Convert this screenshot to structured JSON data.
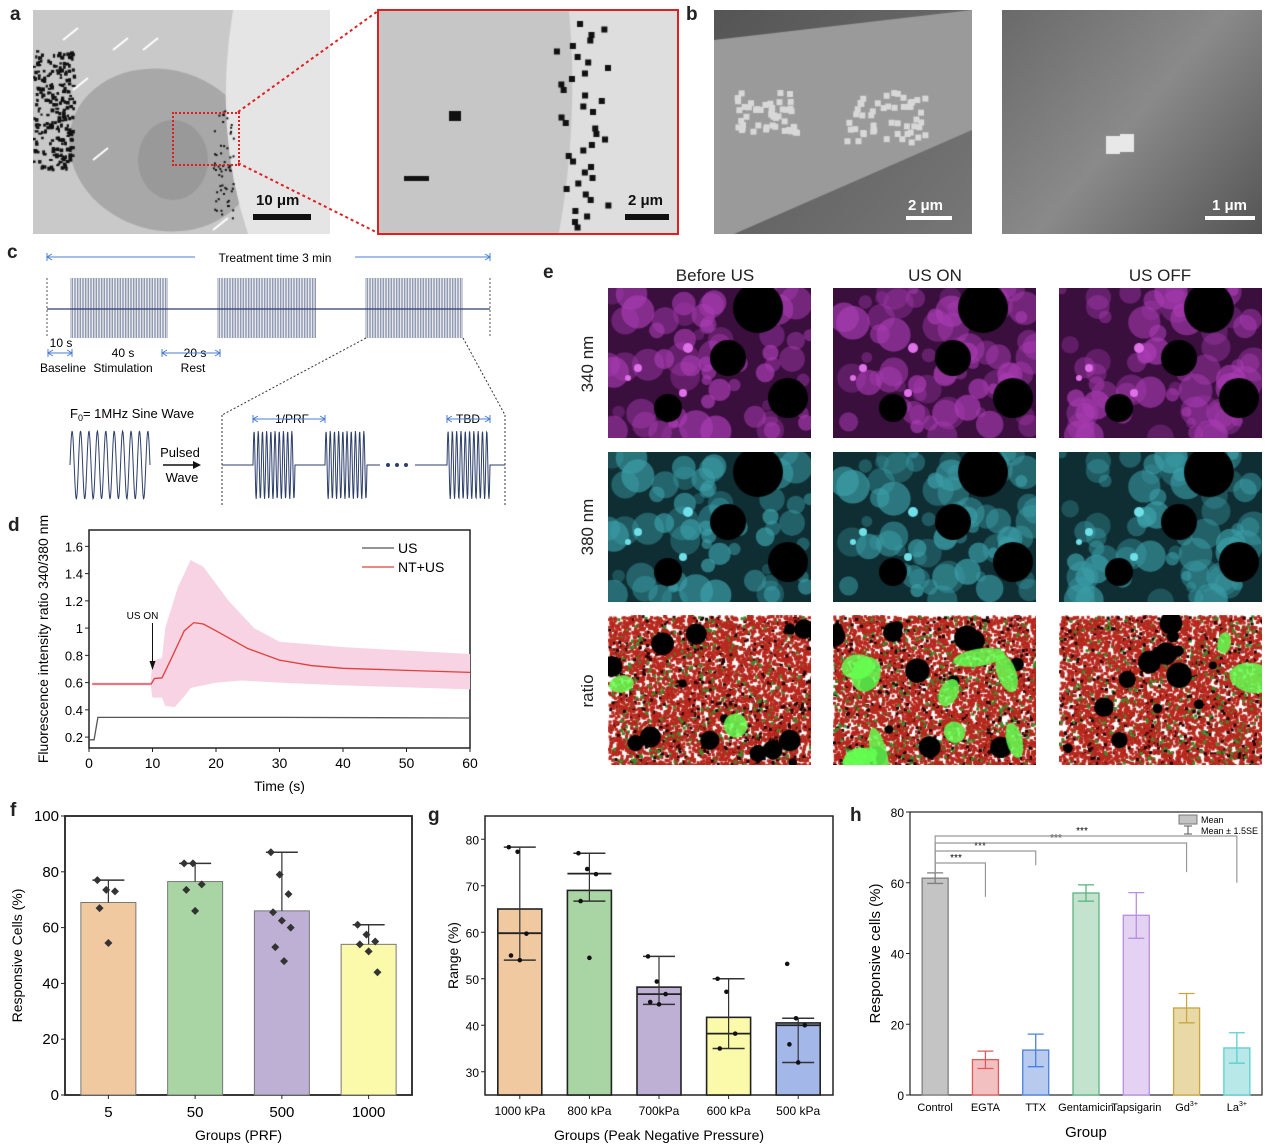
{
  "panels": {
    "a": {
      "label": "a",
      "scale_main": "10 μm",
      "scale_inset": "2 μm"
    },
    "b": {
      "label": "b",
      "scale_left": "2 μm",
      "scale_right": "1 μm"
    },
    "c": {
      "label": "c",
      "treatment": "Treatment time 3 min",
      "t10": "10 s",
      "t40": "40 s",
      "t20": "20 s",
      "baseline": "Baseline",
      "stimulation": "Stimulation",
      "rest": "Rest",
      "f0_prefix": "F",
      "f0_sub": "0",
      "f0_rest": "= 1MHz Sine Wave",
      "pulsed": "Pulsed",
      "wave": "Wave",
      "prf": "1/PRF",
      "tbd": "TBD",
      "color": "#2c3e6b",
      "arrow_color": "#4a7fd4"
    },
    "e": {
      "label": "e",
      "columns": [
        "Before US",
        "US ON",
        "US OFF"
      ],
      "rows": [
        "340 nm",
        "380 nm",
        "ratio"
      ]
    },
    "f": {
      "label": "f"
    },
    "g": {
      "label": "g"
    },
    "h": {
      "label": "h"
    },
    "d": {
      "label": "d"
    }
  },
  "chart_data": [
    {
      "id": "d",
      "type": "line",
      "xlabel": "Time (s)",
      "ylabel": "Fluorescence intensity ratio 340/380 nm",
      "xlim": [
        0,
        60
      ],
      "ylim": [
        0.12,
        1.72
      ],
      "xticks": [
        0,
        10,
        20,
        30,
        40,
        50,
        60
      ],
      "yticks": [
        0.2,
        0.4,
        0.6,
        0.8,
        1.0,
        1.2,
        1.4,
        1.6
      ],
      "annotation": "US ON",
      "annotation_x": 10,
      "legend": "top-right",
      "series": [
        {
          "name": "US",
          "color": "#555555",
          "x": [
            0,
            0.8,
            1.4,
            30,
            60
          ],
          "y": [
            0.18,
            0.18,
            0.345,
            0.345,
            0.34
          ]
        },
        {
          "name": "NT+US",
          "color": "#e0403a",
          "band_color": "#f7d3e3",
          "x": [
            0.5,
            9.8,
            10.3,
            11.5,
            13,
            15,
            16.5,
            18,
            20,
            25,
            30,
            35,
            40,
            50,
            60
          ],
          "y": [
            0.59,
            0.59,
            0.63,
            0.635,
            0.78,
            0.98,
            1.04,
            1.03,
            0.98,
            0.85,
            0.765,
            0.725,
            0.705,
            0.69,
            0.675
          ],
          "band_upper": {
            "x": [
              0.5,
              9.7,
              10,
              11.5,
              12,
              14,
              16,
              18,
              22,
              26,
              30,
              40,
              60
            ],
            "y": [
              0.6,
              0.6,
              0.76,
              0.78,
              1.0,
              1.3,
              1.5,
              1.45,
              1.2,
              1.0,
              0.9,
              0.86,
              0.81
            ]
          },
          "band_lower": {
            "x": [
              0.5,
              9.7,
              10,
              11.5,
              12,
              13.5,
              15,
              16,
              20,
              24,
              30,
              40,
              60
            ],
            "y": [
              0.58,
              0.58,
              0.49,
              0.49,
              0.43,
              0.42,
              0.5,
              0.56,
              0.6,
              0.615,
              0.6,
              0.58,
              0.55
            ]
          }
        }
      ]
    },
    {
      "id": "f",
      "type": "bar",
      "xlabel": "Groups (PRF)",
      "ylabel": "Responsive Cells (%)",
      "ylim": [
        0,
        100
      ],
      "yticks": [
        0,
        20,
        40,
        60,
        80,
        100
      ],
      "categories": [
        "5",
        "50",
        "500",
        "1000"
      ],
      "values": [
        69,
        76.5,
        66,
        54
      ],
      "error_high": [
        77,
        83,
        87,
        61
      ],
      "colors": [
        "#f0c9a0",
        "#a9d5a5",
        "#bdb0d4",
        "#fafaaa"
      ],
      "points": [
        [
          77,
          73.5,
          73,
          67,
          54.5
        ],
        [
          83,
          83,
          75.5,
          73.5,
          66
        ],
        [
          87,
          79,
          72,
          65.5,
          62.5,
          60,
          53,
          48
        ],
        [
          61,
          57.5,
          55,
          54,
          51.5,
          44
        ]
      ]
    },
    {
      "id": "g",
      "type": "bar",
      "xlabel": "Groups (Peak Negative Pressure)",
      "ylabel": "Range (%)",
      "ylim": [
        25,
        85
      ],
      "yticks": [
        30,
        40,
        50,
        60,
        70,
        80
      ],
      "categories": [
        "1000 kPa",
        "800 kPa",
        "700kPa",
        "600 kPa",
        "500 kPa"
      ],
      "values": [
        65,
        69,
        48.2,
        41.7,
        40.5
      ],
      "median": [
        59.8,
        72.6,
        46.7,
        38.2,
        40.0
      ],
      "whisker_low": [
        54,
        66.7,
        44.5,
        35,
        32
      ],
      "whisker_high": [
        78.3,
        77,
        54.8,
        50,
        41.5
      ],
      "colors": [
        "#f0c9a0",
        "#a9d5a5",
        "#bdb0d4",
        "#fafaaa",
        "#a3b8e8"
      ],
      "points": [
        [
          78.3,
          77.3,
          59.7,
          55,
          54
        ],
        [
          77,
          73.6,
          72.5,
          66.7,
          54.5
        ],
        [
          54.8,
          49.4,
          46.7,
          45,
          44.5
        ],
        [
          50,
          47.2,
          38.2,
          35
        ],
        [
          53.2,
          41.5,
          40,
          35.9,
          32
        ]
      ]
    },
    {
      "id": "h",
      "type": "bar",
      "xlabel": "Group",
      "ylabel": "Responsive cells (%)",
      "ylim": [
        0,
        80
      ],
      "yticks": [
        0,
        20,
        40,
        60,
        80
      ],
      "categories": [
        "Control",
        "EGTA",
        "TTX",
        "Gentamicin",
        "Tapsigarin",
        "Gd3+",
        "La3+"
      ],
      "category_base": [
        "Control",
        "EGTA",
        "TTX",
        "Gentamicin",
        "Tapsigarin",
        "Gd",
        "La"
      ],
      "category_sup": [
        "",
        "",
        "",
        "",
        "",
        "3+",
        "3+"
      ],
      "values": [
        61.3,
        10,
        12.7,
        57.1,
        50.8,
        24.6,
        13.3
      ],
      "error_low": [
        59.8,
        7.5,
        8,
        54.8,
        44.3,
        20.4,
        9
      ],
      "error_high": [
        62.8,
        12.4,
        17.2,
        59.4,
        57.2,
        28.7,
        17.6
      ],
      "fill_colors": [
        "#c4c4c4",
        "#f2c0c0",
        "#b8cbef",
        "#c3e3cf",
        "#e3d2f1",
        "#e8d9a6",
        "#b8e8e8"
      ],
      "edge_colors": [
        "#7f7f7f",
        "#e05a5a",
        "#4a80e0",
        "#5cb37f",
        "#b98ee0",
        "#c9a640",
        "#5dcfcf"
      ],
      "legend": {
        "mean": "Mean",
        "error": "Mean ± 1.5SE",
        "position": "top-right"
      },
      "significance": [
        {
          "from": "Control",
          "to": "EGTA",
          "label": "***"
        },
        {
          "from": "Control",
          "to": "TTX",
          "label": "***"
        },
        {
          "from": "Control",
          "to": "Gd3+",
          "label": "***"
        },
        {
          "from": "Control",
          "to": "La3+",
          "label": "***"
        }
      ]
    }
  ]
}
